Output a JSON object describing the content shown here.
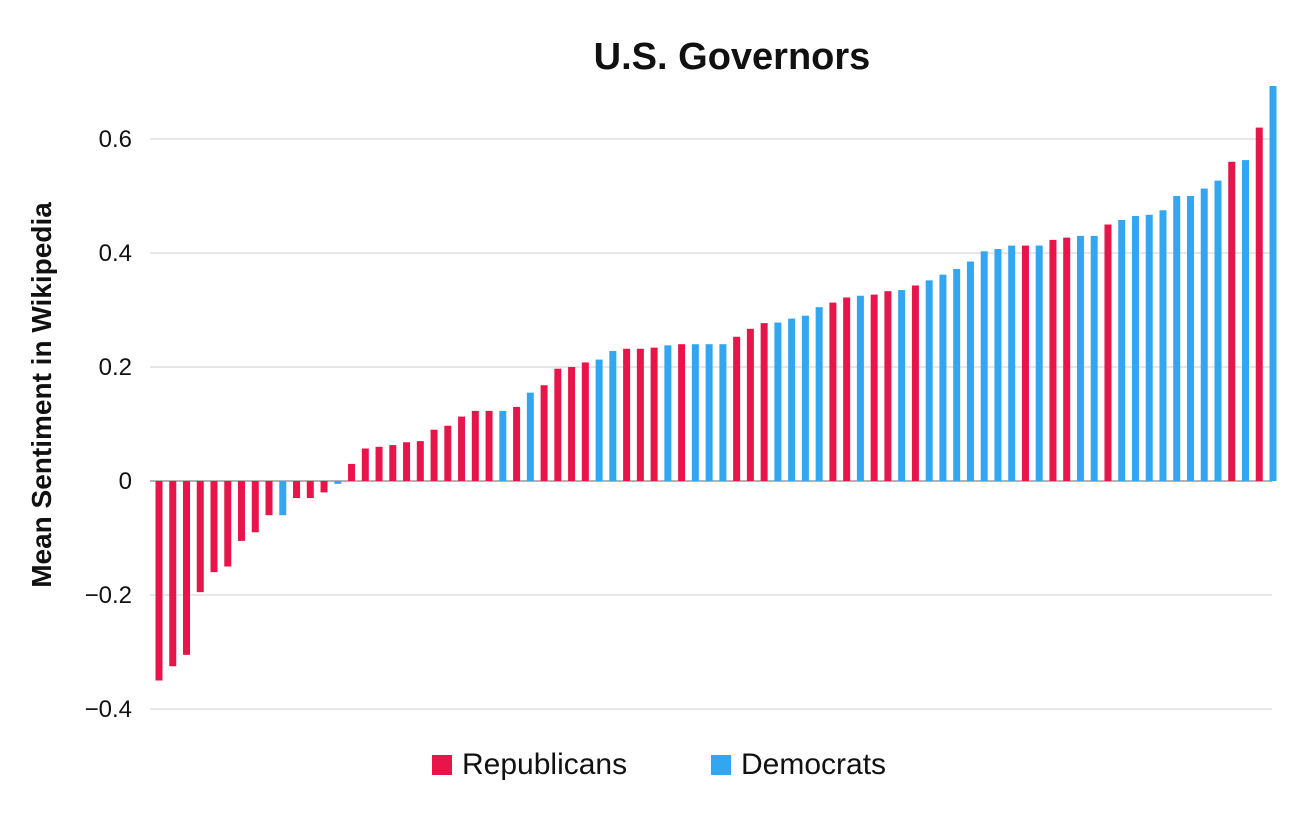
{
  "chart_data": {
    "type": "bar",
    "title": "U.S. Governors",
    "xlabel": "",
    "ylabel": "Mean Sentiment in Wikipedia",
    "ylim": [
      -0.4,
      0.7
    ],
    "yticks": [
      0.6,
      0.4,
      0.2,
      0,
      -0.2,
      -0.4
    ],
    "ytick_labels": [
      "0.6",
      "0.4",
      "0.2",
      "0",
      "−0.2",
      "−0.4"
    ],
    "grid": true,
    "legend_position": "bottom",
    "series": [
      {
        "name": "Republicans",
        "color": "#e8154b"
      },
      {
        "name": "Democrats",
        "color": "#33a6f2"
      }
    ],
    "bars": [
      {
        "party": "Republicans",
        "value": -0.35
      },
      {
        "party": "Republicans",
        "value": -0.325
      },
      {
        "party": "Republicans",
        "value": -0.305
      },
      {
        "party": "Republicans",
        "value": -0.195
      },
      {
        "party": "Republicans",
        "value": -0.16
      },
      {
        "party": "Republicans",
        "value": -0.15
      },
      {
        "party": "Republicans",
        "value": -0.105
      },
      {
        "party": "Republicans",
        "value": -0.09
      },
      {
        "party": "Republicans",
        "value": -0.06
      },
      {
        "party": "Democrats",
        "value": -0.06
      },
      {
        "party": "Republicans",
        "value": -0.03
      },
      {
        "party": "Republicans",
        "value": -0.03
      },
      {
        "party": "Republicans",
        "value": -0.02
      },
      {
        "party": "Democrats",
        "value": -0.005
      },
      {
        "party": "Republicans",
        "value": 0.03
      },
      {
        "party": "Republicans",
        "value": 0.057
      },
      {
        "party": "Republicans",
        "value": 0.06
      },
      {
        "party": "Republicans",
        "value": 0.063
      },
      {
        "party": "Republicans",
        "value": 0.068
      },
      {
        "party": "Republicans",
        "value": 0.07
      },
      {
        "party": "Republicans",
        "value": 0.09
      },
      {
        "party": "Republicans",
        "value": 0.097
      },
      {
        "party": "Republicans",
        "value": 0.113
      },
      {
        "party": "Republicans",
        "value": 0.123
      },
      {
        "party": "Republicans",
        "value": 0.123
      },
      {
        "party": "Democrats",
        "value": 0.123
      },
      {
        "party": "Republicans",
        "value": 0.13
      },
      {
        "party": "Democrats",
        "value": 0.155
      },
      {
        "party": "Republicans",
        "value": 0.168
      },
      {
        "party": "Republicans",
        "value": 0.197
      },
      {
        "party": "Republicans",
        "value": 0.2
      },
      {
        "party": "Republicans",
        "value": 0.208
      },
      {
        "party": "Democrats",
        "value": 0.213
      },
      {
        "party": "Democrats",
        "value": 0.228
      },
      {
        "party": "Republicans",
        "value": 0.232
      },
      {
        "party": "Republicans",
        "value": 0.232
      },
      {
        "party": "Republicans",
        "value": 0.234
      },
      {
        "party": "Democrats",
        "value": 0.238
      },
      {
        "party": "Republicans",
        "value": 0.24
      },
      {
        "party": "Democrats",
        "value": 0.24
      },
      {
        "party": "Democrats",
        "value": 0.24
      },
      {
        "party": "Democrats",
        "value": 0.24
      },
      {
        "party": "Republicans",
        "value": 0.253
      },
      {
        "party": "Republicans",
        "value": 0.267
      },
      {
        "party": "Republicans",
        "value": 0.277
      },
      {
        "party": "Democrats",
        "value": 0.278
      },
      {
        "party": "Democrats",
        "value": 0.285
      },
      {
        "party": "Democrats",
        "value": 0.29
      },
      {
        "party": "Democrats",
        "value": 0.305
      },
      {
        "party": "Republicans",
        "value": 0.313
      },
      {
        "party": "Republicans",
        "value": 0.322
      },
      {
        "party": "Democrats",
        "value": 0.325
      },
      {
        "party": "Republicans",
        "value": 0.327
      },
      {
        "party": "Republicans",
        "value": 0.333
      },
      {
        "party": "Democrats",
        "value": 0.335
      },
      {
        "party": "Republicans",
        "value": 0.343
      },
      {
        "party": "Democrats",
        "value": 0.352
      },
      {
        "party": "Democrats",
        "value": 0.362
      },
      {
        "party": "Democrats",
        "value": 0.372
      },
      {
        "party": "Democrats",
        "value": 0.385
      },
      {
        "party": "Democrats",
        "value": 0.403
      },
      {
        "party": "Democrats",
        "value": 0.407
      },
      {
        "party": "Democrats",
        "value": 0.413
      },
      {
        "party": "Republicans",
        "value": 0.413
      },
      {
        "party": "Democrats",
        "value": 0.413
      },
      {
        "party": "Republicans",
        "value": 0.423
      },
      {
        "party": "Republicans",
        "value": 0.427
      },
      {
        "party": "Democrats",
        "value": 0.43
      },
      {
        "party": "Democrats",
        "value": 0.43
      },
      {
        "party": "Republicans",
        "value": 0.45
      },
      {
        "party": "Democrats",
        "value": 0.458
      },
      {
        "party": "Democrats",
        "value": 0.465
      },
      {
        "party": "Democrats",
        "value": 0.467
      },
      {
        "party": "Democrats",
        "value": 0.475
      },
      {
        "party": "Democrats",
        "value": 0.5
      },
      {
        "party": "Democrats",
        "value": 0.5
      },
      {
        "party": "Democrats",
        "value": 0.513
      },
      {
        "party": "Democrats",
        "value": 0.527
      },
      {
        "party": "Republicans",
        "value": 0.56
      },
      {
        "party": "Democrats",
        "value": 0.563
      },
      {
        "party": "Republicans",
        "value": 0.62
      },
      {
        "party": "Democrats",
        "value": 0.693
      }
    ]
  }
}
